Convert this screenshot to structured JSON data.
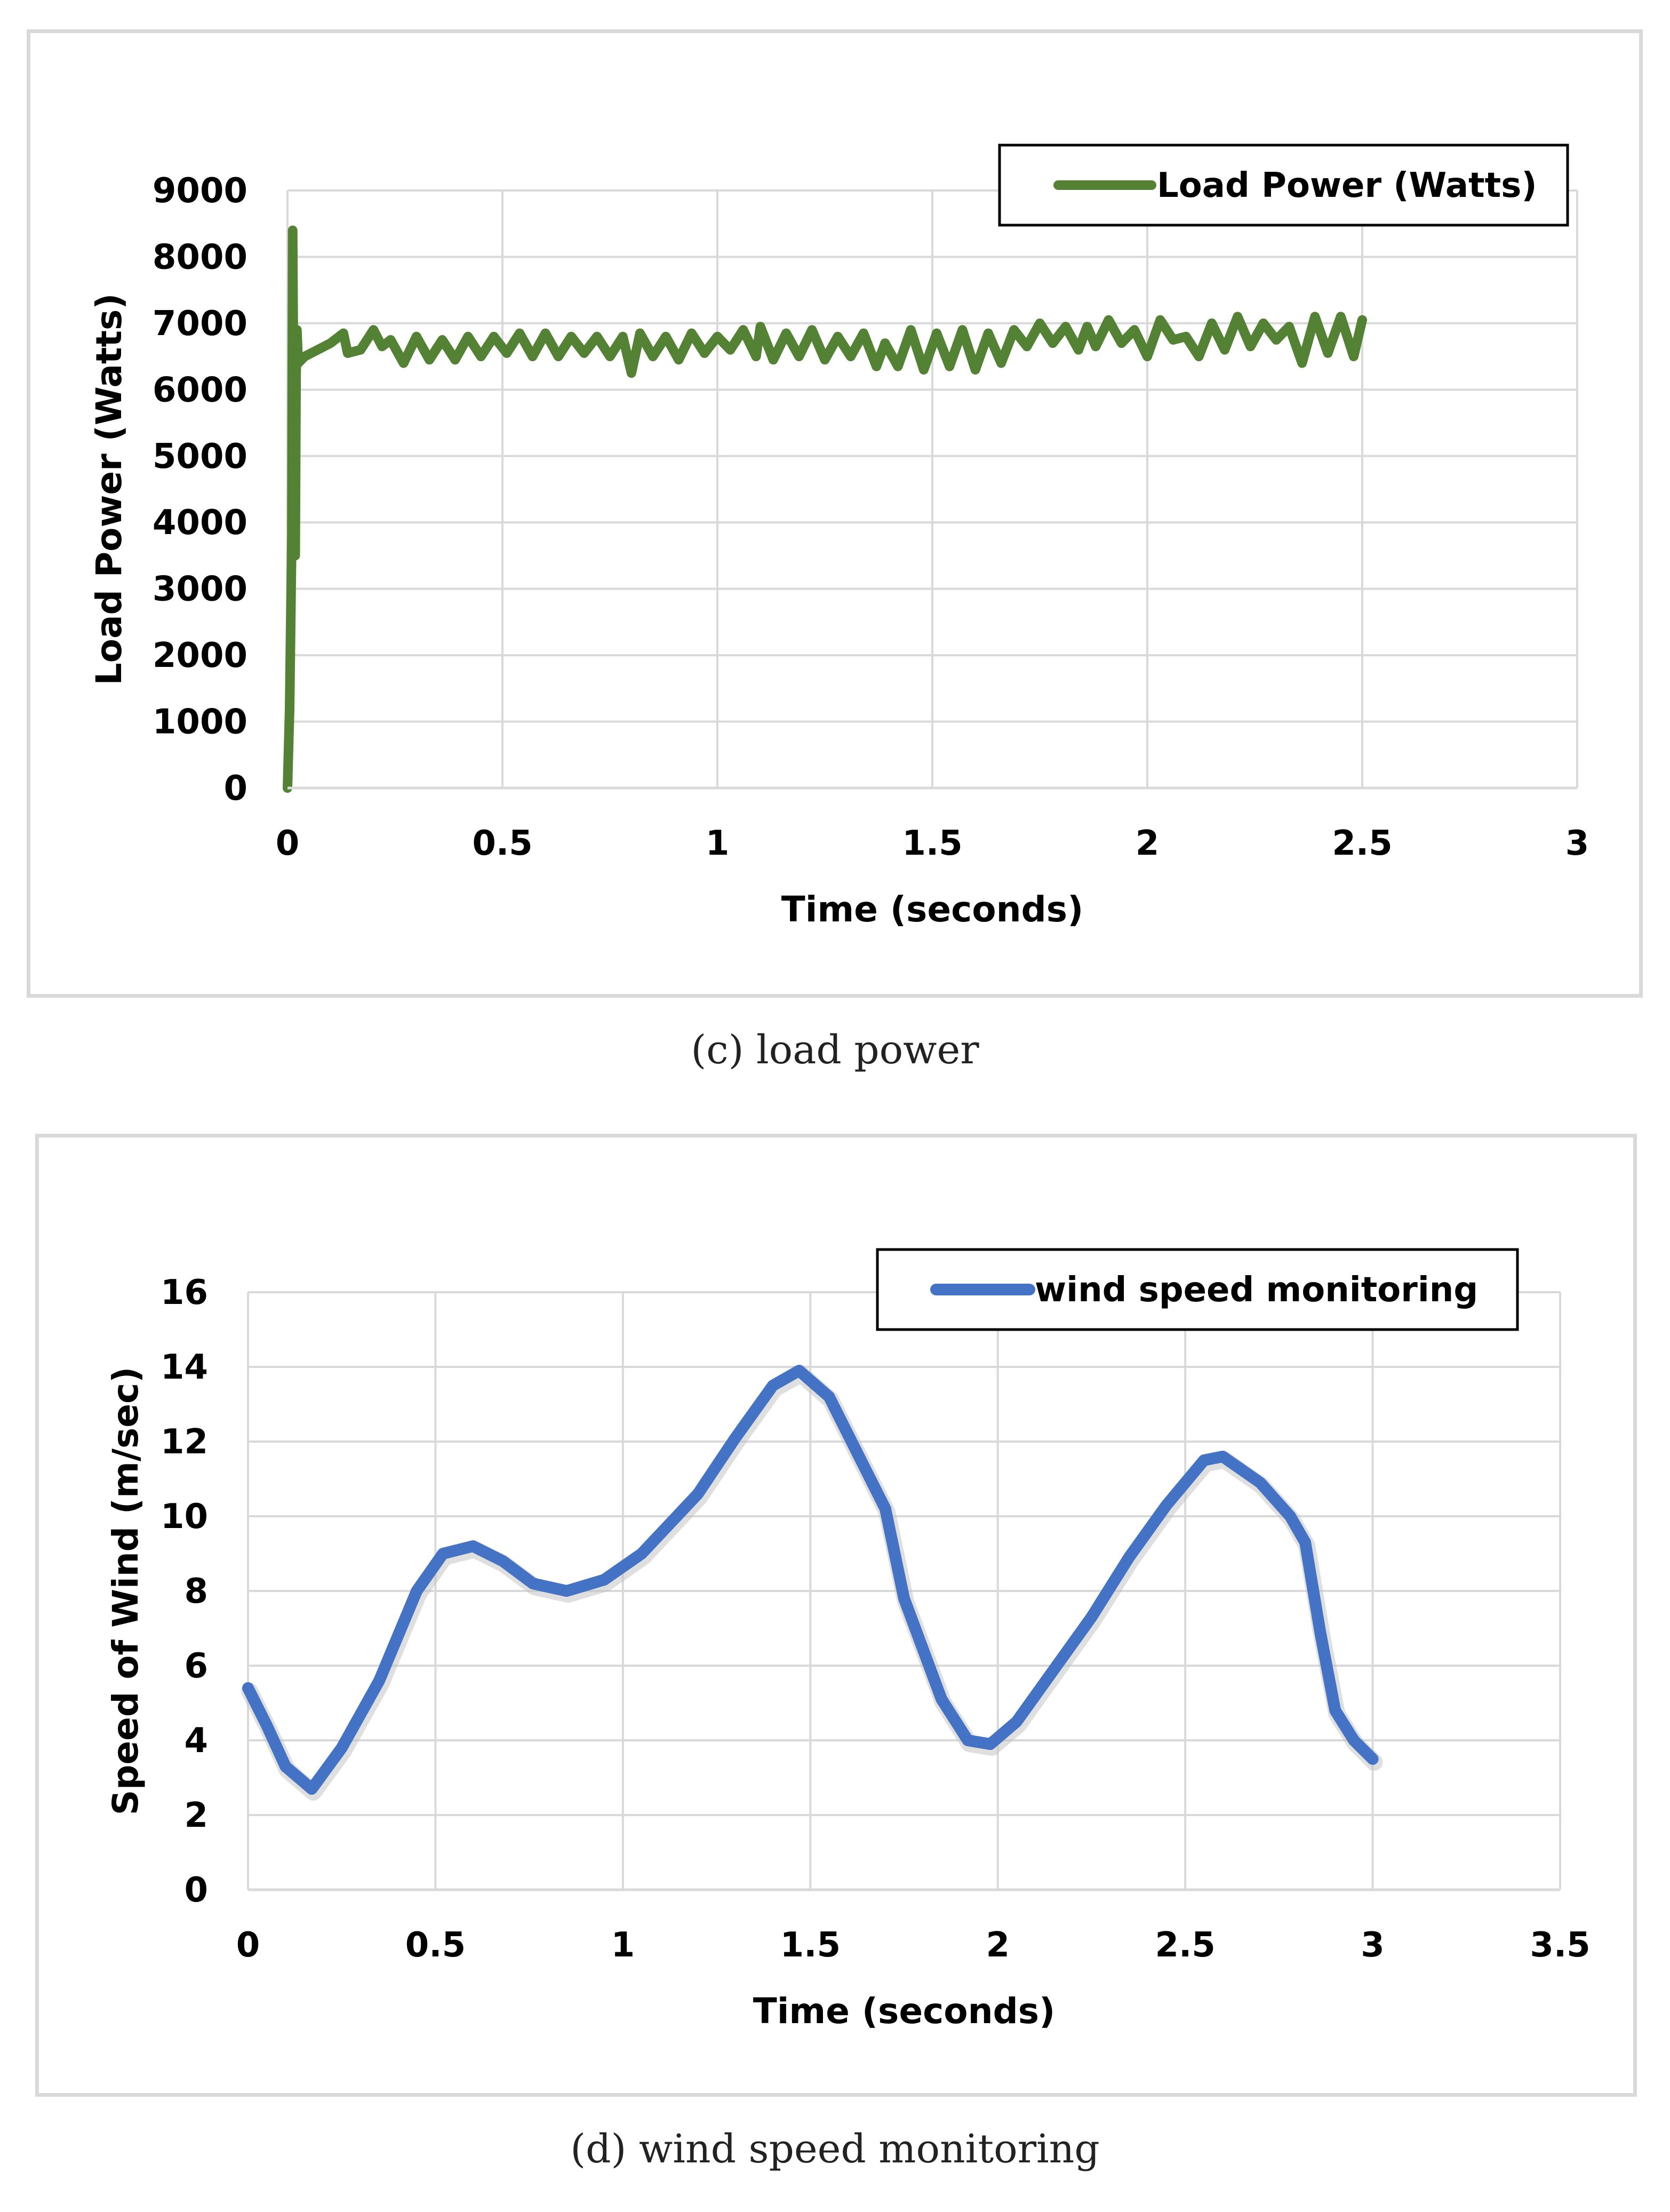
{
  "chart_data": [
    {
      "type": "line",
      "xlabel": "Time (seconds)",
      "ylabel": "Load Power (Watts)",
      "xlim": [
        0,
        3
      ],
      "ylim": [
        0,
        9000
      ],
      "xticks": [
        "0",
        "0.5",
        "1",
        "1.5",
        "2",
        "2.5",
        "3"
      ],
      "yticks": [
        "0",
        "1000",
        "2000",
        "3000",
        "4000",
        "5000",
        "6000",
        "7000",
        "8000",
        "9000"
      ],
      "grid": true,
      "legend_position": "top-right",
      "caption": "(c) load power",
      "series": [
        {
          "name": "Load Power (Watts)",
          "color": "#548235",
          "x": [
            0.0,
            0.005,
            0.01,
            0.012,
            0.015,
            0.018,
            0.02,
            0.022,
            0.025,
            0.04,
            0.07,
            0.1,
            0.13,
            0.14,
            0.17,
            0.2,
            0.22,
            0.24,
            0.27,
            0.3,
            0.33,
            0.36,
            0.39,
            0.42,
            0.45,
            0.48,
            0.51,
            0.54,
            0.57,
            0.6,
            0.63,
            0.66,
            0.69,
            0.72,
            0.75,
            0.78,
            0.8,
            0.82,
            0.85,
            0.88,
            0.91,
            0.94,
            0.97,
            1.0,
            1.03,
            1.06,
            1.09,
            1.1,
            1.13,
            1.16,
            1.19,
            1.22,
            1.25,
            1.28,
            1.31,
            1.34,
            1.37,
            1.39,
            1.42,
            1.45,
            1.48,
            1.51,
            1.54,
            1.57,
            1.6,
            1.63,
            1.66,
            1.69,
            1.72,
            1.75,
            1.78,
            1.81,
            1.84,
            1.86,
            1.88,
            1.91,
            1.94,
            1.97,
            2.0,
            2.03,
            2.06,
            2.09,
            2.12,
            2.15,
            2.18,
            2.21,
            2.24,
            2.27,
            2.3,
            2.33,
            2.36,
            2.39,
            2.42,
            2.45,
            2.48,
            2.5
          ],
          "values": [
            0,
            1200,
            3800,
            8400,
            5200,
            3500,
            6200,
            6900,
            6400,
            6500,
            6600,
            6700,
            6850,
            6550,
            6600,
            6900,
            6650,
            6750,
            6400,
            6800,
            6450,
            6750,
            6450,
            6800,
            6500,
            6800,
            6550,
            6850,
            6500,
            6850,
            6500,
            6800,
            6550,
            6800,
            6500,
            6800,
            6250,
            6850,
            6500,
            6800,
            6450,
            6850,
            6550,
            6800,
            6600,
            6900,
            6500,
            6950,
            6450,
            6850,
            6500,
            6900,
            6450,
            6800,
            6500,
            6850,
            6350,
            6700,
            6350,
            6900,
            6300,
            6850,
            6350,
            6900,
            6300,
            6850,
            6400,
            6900,
            6650,
            7000,
            6700,
            6950,
            6600,
            6950,
            6650,
            7050,
            6700,
            6900,
            6500,
            7050,
            6750,
            6800,
            6500,
            7000,
            6600,
            7100,
            6650,
            7000,
            6750,
            6950,
            6400,
            7100,
            6550,
            7100,
            6500,
            7050
          ]
        }
      ]
    },
    {
      "type": "line",
      "xlabel": "Time (seconds)",
      "ylabel": "Speed of Wind (m/sec)",
      "xlim": [
        0,
        3.5
      ],
      "ylim": [
        0,
        16
      ],
      "xticks": [
        "0",
        "0.5",
        "1",
        "1.5",
        "2",
        "2.5",
        "3",
        "3.5"
      ],
      "yticks": [
        "0",
        "2",
        "4",
        "6",
        "8",
        "10",
        "12",
        "14",
        "16"
      ],
      "grid": true,
      "legend_position": "top-right",
      "caption": "(d) wind speed monitoring",
      "series": [
        {
          "name": "wind speed monitoring",
          "color": "#4472c4",
          "x": [
            0.0,
            0.05,
            0.1,
            0.17,
            0.25,
            0.35,
            0.45,
            0.52,
            0.6,
            0.68,
            0.76,
            0.85,
            0.95,
            1.05,
            1.2,
            1.3,
            1.4,
            1.47,
            1.55,
            1.65,
            1.7,
            1.75,
            1.85,
            1.92,
            1.98,
            2.05,
            2.15,
            2.25,
            2.35,
            2.45,
            2.55,
            2.6,
            2.7,
            2.78,
            2.82,
            2.86,
            2.9,
            2.95,
            3.0
          ],
          "values": [
            5.4,
            4.4,
            3.3,
            2.7,
            3.8,
            5.6,
            8.0,
            9.0,
            9.2,
            8.8,
            8.2,
            8.0,
            8.3,
            9.0,
            10.6,
            12.1,
            13.5,
            13.9,
            13.2,
            11.2,
            10.2,
            7.8,
            5.1,
            4.0,
            3.9,
            4.5,
            5.9,
            7.3,
            8.9,
            10.3,
            11.5,
            11.6,
            10.9,
            10.0,
            9.3,
            6.9,
            4.8,
            4.0,
            3.5
          ]
        }
      ]
    }
  ]
}
